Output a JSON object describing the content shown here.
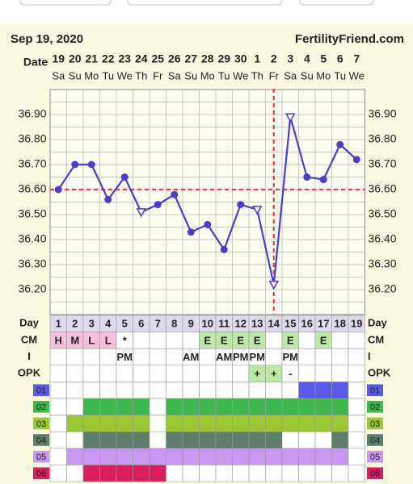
{
  "header": {
    "date": "Sep 19, 2020",
    "site": "FertilityFriend.com"
  },
  "chart_data": {
    "type": "line",
    "x_label": "Date",
    "categories": [
      "19",
      "20",
      "21",
      "22",
      "23",
      "24",
      "25",
      "26",
      "27",
      "28",
      "29",
      "30",
      "1",
      "2",
      "3",
      "4",
      "5",
      "6",
      "7"
    ],
    "weekdays": [
      "Sa",
      "Su",
      "Mo",
      "Tu",
      "We",
      "Th",
      "Fr",
      "Sa",
      "Su",
      "Mo",
      "Tu",
      "We",
      "Th",
      "Fr",
      "Sa",
      "Su",
      "Mo",
      "Tu",
      "We"
    ],
    "series": [
      {
        "color": "#4a3fc4",
        "values": [
          36.6,
          36.7,
          36.7,
          36.56,
          36.65,
          36.51,
          36.54,
          36.58,
          36.43,
          36.46,
          36.36,
          36.54,
          36.52,
          36.22,
          36.89,
          36.65,
          36.64,
          36.78,
          36.72
        ],
        "markers": [
          "dot",
          "dot",
          "dot",
          "dot",
          "dot",
          "triangle",
          "dot",
          "dot",
          "dot",
          "dot",
          "dot",
          "dot",
          "triangle",
          "triangle",
          "triangle",
          "dot",
          "dot",
          "dot",
          "dot"
        ]
      }
    ],
    "ylim": [
      36.1,
      37.0
    ],
    "yticks": [
      {
        "value": 36.2,
        "label": "36.20"
      },
      {
        "value": 36.3,
        "label": "36.30"
      },
      {
        "value": 36.4,
        "label": "36.40"
      },
      {
        "value": 36.5,
        "label": "36.50"
      },
      {
        "value": 36.6,
        "label": "36.60"
      },
      {
        "value": 36.7,
        "label": "36.70"
      },
      {
        "value": 36.8,
        "label": "36.80"
      },
      {
        "value": 36.9,
        "label": "36.90"
      }
    ],
    "coverline": 36.6,
    "ovulation_day": 14,
    "guide_color": "#e04040",
    "grid": true
  },
  "table": {
    "cell_colors": {
      "H": "#f4c0dc",
      "M": "#f4c0dc",
      "L": "#f4c0dc",
      "E": "#bde8a8",
      "+": "#bde8a8"
    },
    "text_rows": [
      {
        "label": "Day",
        "cells": [
          "1",
          "2",
          "3",
          "4",
          "5",
          "6",
          "7",
          "8",
          "9",
          "10",
          "11",
          "12",
          "13",
          "14",
          "15",
          "16",
          "17",
          "18",
          "19"
        ]
      },
      {
        "label": "CM",
        "cells": [
          "H",
          "M",
          "L",
          "L",
          "*",
          null,
          null,
          null,
          null,
          "E",
          "E",
          "E",
          "E",
          null,
          "E",
          null,
          "E",
          null,
          null
        ]
      },
      {
        "label": "I",
        "cells": [
          null,
          null,
          null,
          null,
          "PM",
          null,
          null,
          null,
          "AM",
          null,
          "AM",
          "PM",
          "PM",
          null,
          "PM",
          null,
          null,
          null,
          null
        ]
      },
      {
        "label": "OPK",
        "cells": [
          null,
          null,
          null,
          null,
          null,
          null,
          null,
          null,
          null,
          null,
          null,
          null,
          "+",
          "+",
          "-",
          null,
          null,
          null,
          null
        ]
      }
    ],
    "color_rows": [
      {
        "label": "01",
        "color": "#5a5ae6",
        "cells": [
          0,
          0,
          0,
          0,
          0,
          0,
          0,
          0,
          0,
          0,
          0,
          0,
          0,
          0,
          0,
          1,
          1,
          1,
          0
        ]
      },
      {
        "label": "02",
        "color": "#3db84c",
        "cells": [
          0,
          0,
          1,
          1,
          1,
          1,
          0,
          1,
          1,
          1,
          1,
          1,
          1,
          1,
          1,
          1,
          1,
          1,
          0
        ]
      },
      {
        "label": "03",
        "color": "#9cc834",
        "cells": [
          0,
          1,
          1,
          1,
          1,
          1,
          0,
          1,
          1,
          1,
          1,
          1,
          1,
          1,
          1,
          1,
          1,
          1,
          0
        ]
      },
      {
        "label": "04",
        "color": "#5e7e6c",
        "cells": [
          0,
          0,
          1,
          1,
          1,
          1,
          0,
          1,
          1,
          1,
          1,
          1,
          1,
          1,
          0,
          0,
          0,
          1,
          0
        ]
      },
      {
        "label": "05",
        "color": "#c998ee",
        "cells": [
          0,
          1,
          1,
          1,
          1,
          1,
          1,
          1,
          1,
          1,
          1,
          1,
          1,
          1,
          1,
          1,
          1,
          1,
          0
        ]
      },
      {
        "label": "06",
        "color": "#d81e5c",
        "cells": [
          0,
          0,
          1,
          1,
          1,
          1,
          1,
          0,
          0,
          0,
          0,
          0,
          0,
          0,
          0,
          0,
          0,
          0,
          0
        ]
      }
    ]
  }
}
